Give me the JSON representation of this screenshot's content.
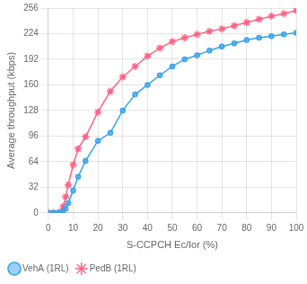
{
  "chart_data": {
    "type": "line",
    "xlabel": "S-CCPCH Ec/Ior (%)",
    "ylabel": "Average throughput (kbps)",
    "xlim": [
      0,
      100
    ],
    "ylim": [
      0,
      256
    ],
    "xticks": [
      0,
      10,
      20,
      30,
      40,
      50,
      60,
      70,
      80,
      90,
      100
    ],
    "yticks": [
      0,
      32,
      64,
      96,
      128,
      160,
      192,
      224,
      256
    ],
    "grid": true,
    "legend": "bottom",
    "series": [
      {
        "name": "VehA (1RL)",
        "marker": "circle",
        "line_style": "solid",
        "x": [
          0,
          2,
          4,
          5,
          6,
          7,
          8,
          10,
          12,
          15,
          20,
          25,
          30,
          35,
          40,
          45,
          50,
          55,
          60,
          65,
          70,
          75,
          80,
          85,
          90,
          95,
          100
        ],
        "values": [
          0,
          0,
          0,
          0,
          2,
          5,
          12,
          28,
          45,
          65,
          90,
          100,
          128,
          148,
          160,
          172,
          183,
          192,
          197,
          203,
          208,
          212,
          216,
          219,
          221,
          223,
          225
        ]
      },
      {
        "name": "PedB (1RL)",
        "marker": "star",
        "line_style": "solid",
        "x": [
          0,
          2,
          4,
          5,
          6,
          7,
          8,
          10,
          12,
          15,
          20,
          25,
          30,
          35,
          40,
          45,
          50,
          55,
          60,
          65,
          70,
          75,
          80,
          85,
          90,
          95,
          100
        ],
        "values": [
          0,
          0,
          0,
          1,
          8,
          20,
          35,
          60,
          80,
          95,
          126,
          152,
          170,
          183,
          196,
          206,
          214,
          219,
          223,
          227,
          230,
          234,
          238,
          242,
          246,
          249,
          253
        ]
      }
    ]
  }
}
